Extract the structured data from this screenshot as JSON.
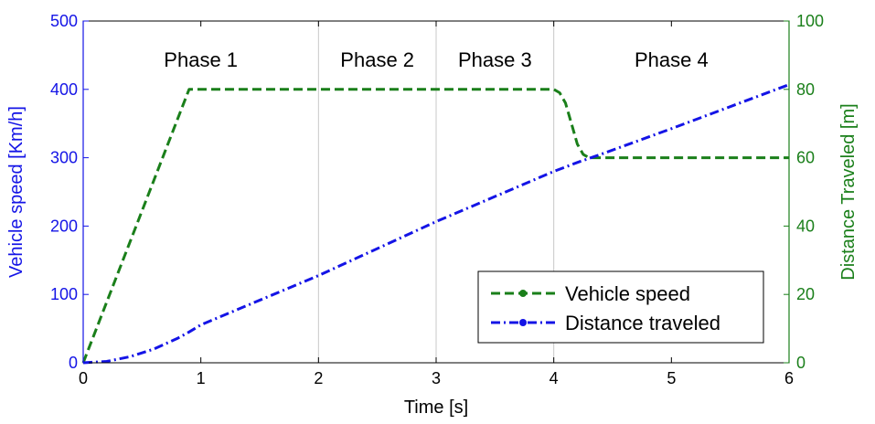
{
  "chart_data": {
    "type": "line",
    "xlabel": "Time [s]",
    "ylabel_left": "Vehicle speed [Km/h]",
    "ylabel_right": "Distance Traveled [m]",
    "xlim": [
      0,
      6
    ],
    "ylim_left": [
      0,
      500
    ],
    "ylim_right": [
      0,
      100
    ],
    "x_ticks": [
      "0",
      "1",
      "2",
      "3",
      "4",
      "5",
      "6"
    ],
    "y_left_ticks": [
      "0",
      "100",
      "200",
      "300",
      "400",
      "500"
    ],
    "y_right_ticks": [
      "0",
      "20",
      "40",
      "60",
      "80",
      "100"
    ],
    "grid": "vertical lines at phase boundaries",
    "phase_boundaries": [
      2,
      3,
      4
    ],
    "phases": [
      {
        "label": "Phase 1",
        "x": 1.0
      },
      {
        "label": "Phase 2",
        "x": 2.5
      },
      {
        "label": "Phase 3",
        "x": 3.5
      },
      {
        "label": "Phase 4",
        "x": 5.0
      }
    ],
    "legend_position": "bottom-right",
    "colors": {
      "speed": "#1a7f1a",
      "distance": "#1414e6",
      "left_axis": "#1414e6",
      "right_axis": "#1a7f1a"
    },
    "series": [
      {
        "name": "Vehicle speed",
        "axis": "left",
        "style": "dashed",
        "x": [
          0,
          0.9,
          4.0,
          4.05,
          4.1,
          4.15,
          4.2,
          4.25,
          4.3,
          4.35,
          6.0
        ],
        "y": [
          0,
          400,
          400,
          395,
          380,
          350,
          320,
          305,
          300,
          300,
          300
        ]
      },
      {
        "name": "Distance traveled",
        "axis": "right",
        "style": "dash-dot",
        "x": [
          0,
          0.2,
          0.4,
          0.6,
          0.8,
          0.9,
          1.0,
          2.0,
          3.0,
          4.0,
          4.2,
          4.4,
          5.0,
          6.0
        ],
        "y": [
          0,
          0.4,
          1.8,
          4.0,
          7.1,
          9.0,
          11.1,
          25.5,
          41.3,
          56.0,
          58.6,
          61.0,
          68.5,
          81.4
        ]
      }
    ]
  }
}
